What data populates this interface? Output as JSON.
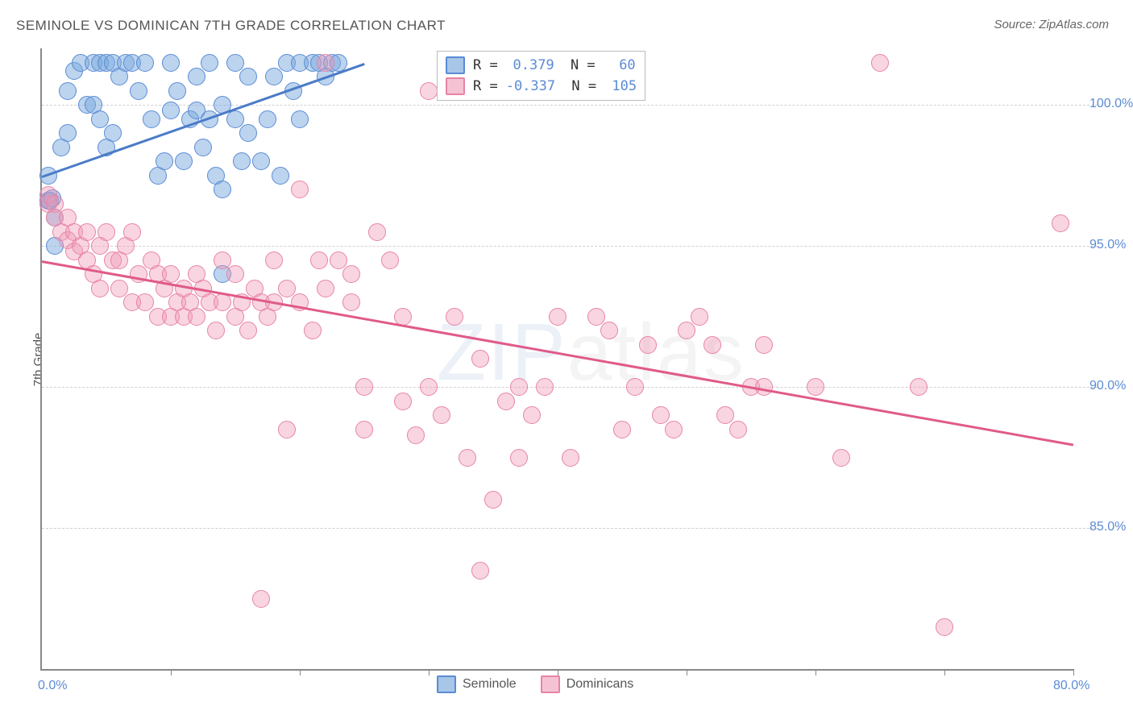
{
  "chart": {
    "type": "scatter",
    "title": "SEMINOLE VS DOMINICAN 7TH GRADE CORRELATION CHART",
    "source": "Source: ZipAtlas.com",
    "watermark": "ZIPatlas",
    "y_axis_label": "7th Grade",
    "background_color": "#ffffff",
    "grid_color": "#d0d0d0",
    "axis_color": "#888888",
    "tick_label_color": "#5b8bd4",
    "xlim": [
      0,
      80
    ],
    "ylim": [
      80,
      102
    ],
    "x_tick_step": 10,
    "y_ticks": [
      85,
      90,
      95,
      100
    ],
    "x_tick_labels": {
      "0": "0.0%",
      "80": "80.0%"
    },
    "y_tick_labels": {
      "85": "85.0%",
      "90": "90.0%",
      "95": "95.0%",
      "100": "100.0%"
    },
    "marker_radius": 10,
    "series": [
      {
        "name": "Seminole",
        "color_fill": "rgba(121,170,221,0.5)",
        "color_stroke": "#5b8bd4",
        "swatch_fill": "#a8c6e8",
        "swatch_stroke": "#5b8bd4",
        "R": "0.379",
        "N": "60",
        "trend": {
          "x1": 0,
          "y1": 97.5,
          "x2": 25,
          "y2": 101.5,
          "color": "#4a7bc8",
          "width": 2.5
        },
        "points": [
          [
            0.5,
            96.6
          ],
          [
            0.6,
            96.6
          ],
          [
            0.8,
            96.7
          ],
          [
            0.5,
            97.5
          ],
          [
            1,
            96.0
          ],
          [
            1,
            95.0
          ],
          [
            1.5,
            98.5
          ],
          [
            2,
            99.0
          ],
          [
            2,
            100.5
          ],
          [
            2.5,
            101.2
          ],
          [
            3,
            101.5
          ],
          [
            3.5,
            100.0
          ],
          [
            4,
            101.5
          ],
          [
            4.5,
            101.5
          ],
          [
            5,
            101.5
          ],
          [
            5.5,
            101.5
          ],
          [
            4,
            100.0
          ],
          [
            4.5,
            99.5
          ],
          [
            5,
            98.5
          ],
          [
            5.5,
            99.0
          ],
          [
            6,
            101.0
          ],
          [
            6.5,
            101.5
          ],
          [
            7,
            101.5
          ],
          [
            7.5,
            100.5
          ],
          [
            8,
            101.5
          ],
          [
            8.5,
            99.5
          ],
          [
            9,
            97.5
          ],
          [
            9.5,
            98.0
          ],
          [
            10,
            101.5
          ],
          [
            10,
            99.8
          ],
          [
            10.5,
            100.5
          ],
          [
            11,
            98.0
          ],
          [
            11.5,
            99.5
          ],
          [
            12,
            101.0
          ],
          [
            12.5,
            98.5
          ],
          [
            13,
            101.5
          ],
          [
            13.5,
            97.5
          ],
          [
            14,
            97.0
          ],
          [
            14,
            100.0
          ],
          [
            15,
            101.5
          ],
          [
            15,
            99.5
          ],
          [
            15.5,
            98.0
          ],
          [
            16,
            101.0
          ],
          [
            17,
            98.0
          ],
          [
            17.5,
            99.5
          ],
          [
            18,
            101.0
          ],
          [
            18.5,
            97.5
          ],
          [
            19,
            101.5
          ],
          [
            19.5,
            100.5
          ],
          [
            20,
            101.5
          ],
          [
            20,
            99.5
          ],
          [
            21,
            101.5
          ],
          [
            21.5,
            101.5
          ],
          [
            22,
            101.0
          ],
          [
            22.5,
            101.5
          ],
          [
            23,
            101.5
          ],
          [
            14,
            94.0
          ],
          [
            12,
            99.8
          ],
          [
            13,
            99.5
          ],
          [
            16,
            99.0
          ]
        ]
      },
      {
        "name": "Dominicans",
        "color_fill": "rgba(240,150,180,0.4)",
        "color_stroke": "#e784a6",
        "swatch_fill": "#f5c2d4",
        "swatch_stroke": "#e784a6",
        "R": "-0.337",
        "N": "105",
        "trend": {
          "x1": 0,
          "y1": 94.5,
          "x2": 80,
          "y2": 88.0,
          "color": "#e05a8a",
          "width": 2.5
        },
        "points": [
          [
            0.5,
            96.5
          ],
          [
            0.5,
            96.8
          ],
          [
            1,
            96.5
          ],
          [
            1,
            96.0
          ],
          [
            1.5,
            95.5
          ],
          [
            2,
            96.0
          ],
          [
            2,
            95.2
          ],
          [
            2.5,
            95.5
          ],
          [
            2.5,
            94.8
          ],
          [
            3,
            95.0
          ],
          [
            3.5,
            95.5
          ],
          [
            3.5,
            94.5
          ],
          [
            4,
            94.0
          ],
          [
            4.5,
            95.0
          ],
          [
            4.5,
            93.5
          ],
          [
            5,
            95.5
          ],
          [
            5.5,
            94.5
          ],
          [
            6,
            94.5
          ],
          [
            6,
            93.5
          ],
          [
            6.5,
            95.0
          ],
          [
            7,
            93.0
          ],
          [
            7,
            95.5
          ],
          [
            7.5,
            94.0
          ],
          [
            8,
            93.0
          ],
          [
            8.5,
            94.5
          ],
          [
            9,
            92.5
          ],
          [
            9,
            94.0
          ],
          [
            9.5,
            93.5
          ],
          [
            10,
            92.5
          ],
          [
            10,
            94.0
          ],
          [
            10.5,
            93.0
          ],
          [
            11,
            92.5
          ],
          [
            11,
            93.5
          ],
          [
            11.5,
            93.0
          ],
          [
            12,
            94.0
          ],
          [
            12,
            92.5
          ],
          [
            12.5,
            93.5
          ],
          [
            13,
            93.0
          ],
          [
            13.5,
            92.0
          ],
          [
            14,
            93.0
          ],
          [
            14,
            94.5
          ],
          [
            15,
            92.5
          ],
          [
            15,
            94.0
          ],
          [
            15.5,
            93.0
          ],
          [
            16,
            92.0
          ],
          [
            16.5,
            93.5
          ],
          [
            17,
            93.0
          ],
          [
            17.5,
            92.5
          ],
          [
            18,
            93.0
          ],
          [
            18,
            94.5
          ],
          [
            19,
            93.5
          ],
          [
            19,
            88.5
          ],
          [
            20,
            97.0
          ],
          [
            20,
            93.0
          ],
          [
            21,
            92.0
          ],
          [
            21.5,
            94.5
          ],
          [
            22,
            101.5
          ],
          [
            22,
            93.5
          ],
          [
            23,
            94.5
          ],
          [
            24,
            94.0
          ],
          [
            24,
            93.0
          ],
          [
            25,
            88.5
          ],
          [
            25,
            90.0
          ],
          [
            26,
            95.5
          ],
          [
            27,
            94.5
          ],
          [
            28,
            92.5
          ],
          [
            28,
            89.5
          ],
          [
            29,
            88.3
          ],
          [
            30,
            90.0
          ],
          [
            30,
            100.5
          ],
          [
            31,
            89.0
          ],
          [
            32,
            92.5
          ],
          [
            33,
            87.5
          ],
          [
            34,
            91.0
          ],
          [
            34,
            83.5
          ],
          [
            35,
            86.0
          ],
          [
            36,
            89.5
          ],
          [
            37,
            90.0
          ],
          [
            37,
            87.5
          ],
          [
            38,
            89.0
          ],
          [
            39,
            90.0
          ],
          [
            40,
            92.5
          ],
          [
            41,
            87.5
          ],
          [
            42,
            101.5
          ],
          [
            43,
            92.5
          ],
          [
            44,
            92.0
          ],
          [
            45,
            88.5
          ],
          [
            46,
            90.0
          ],
          [
            47,
            91.5
          ],
          [
            48,
            89.0
          ],
          [
            49,
            88.5
          ],
          [
            50,
            92.0
          ],
          [
            51,
            92.5
          ],
          [
            52,
            91.5
          ],
          [
            53,
            89.0
          ],
          [
            54,
            88.5
          ],
          [
            55,
            90.0
          ],
          [
            56,
            91.5
          ],
          [
            56,
            90.0
          ],
          [
            60,
            90.0
          ],
          [
            62,
            87.5
          ],
          [
            65,
            101.5
          ],
          [
            68,
            90.0
          ],
          [
            70,
            81.5
          ],
          [
            79,
            95.8
          ],
          [
            17,
            82.5
          ]
        ]
      }
    ],
    "legend_bottom": [
      {
        "label": "Seminole",
        "series_index": 0
      },
      {
        "label": "Dominicans",
        "series_index": 1
      }
    ]
  }
}
